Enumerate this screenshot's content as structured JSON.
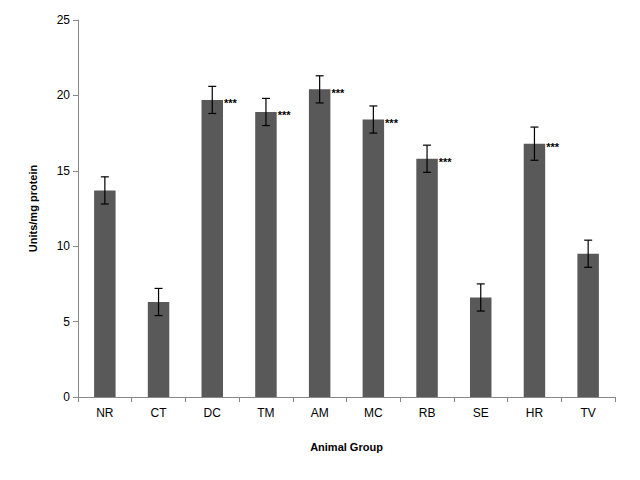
{
  "chart_data": {
    "type": "bar",
    "x_label": "Animal Group",
    "y_label": "Units/mg protein",
    "categories": [
      "NR",
      "CT",
      "DC",
      "TM",
      "AM",
      "MC",
      "RB",
      "SE",
      "HR",
      "TV"
    ],
    "values": [
      13.7,
      6.3,
      19.7,
      18.9,
      20.4,
      18.4,
      15.8,
      6.6,
      16.8,
      9.5
    ],
    "errors": [
      0.9,
      0.9,
      0.9,
      0.9,
      0.9,
      0.9,
      0.9,
      0.9,
      1.1,
      0.9
    ],
    "significance": [
      null,
      null,
      "***",
      "***",
      "***",
      "***",
      "***",
      null,
      "***",
      null
    ],
    "color": "#595959",
    "ylim": [
      0,
      25
    ],
    "yticks": [
      0,
      5,
      10,
      15,
      20,
      25
    ],
    "grid": false
  }
}
